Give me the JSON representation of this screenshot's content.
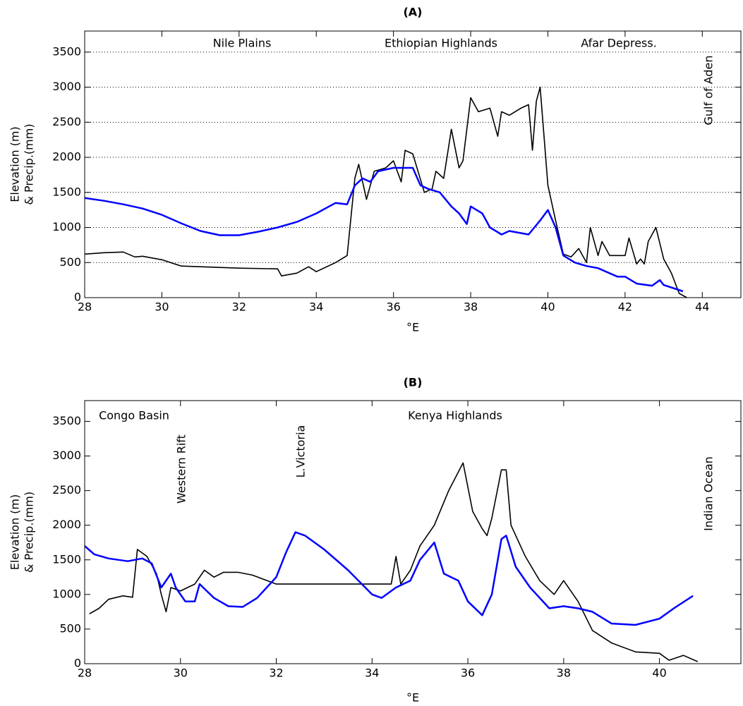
{
  "chart_data": [
    {
      "type": "line",
      "title": "(A)",
      "xlabel": "°E",
      "ylabel": [
        "Elevation (m)",
        "& Precip.(mm)"
      ],
      "annotations": [
        "Nile Plains",
        "Ethiopian Highlands",
        "Afar Depress.",
        "Gulf of Aden"
      ],
      "xlim": [
        28,
        45
      ],
      "ylim": [
        0,
        3800
      ],
      "xticks": [
        28,
        30,
        32,
        34,
        36,
        38,
        40,
        42,
        44
      ],
      "yticks": [
        0,
        500,
        1000,
        1500,
        2000,
        2500,
        3000,
        3500
      ],
      "grid": "y",
      "series": [
        {
          "color": "#000000",
          "x": [
            28,
            28.5,
            29,
            29.3,
            29.5,
            30,
            30.5,
            31,
            32,
            33,
            33.1,
            33.5,
            33.8,
            34,
            34.5,
            34.8,
            35,
            35.1,
            35.3,
            35.5,
            35.8,
            36,
            36.2,
            36.3,
            36.5,
            36.8,
            37,
            37.1,
            37.3,
            37.5,
            37.7,
            37.8,
            38,
            38.2,
            38.5,
            38.7,
            38.8,
            39,
            39.3,
            39.5,
            39.6,
            39.7,
            39.8,
            40,
            40.2,
            40.4,
            40.6,
            40.8,
            41,
            41.1,
            41.3,
            41.4,
            41.6,
            42,
            42.1,
            42.3,
            42.4,
            42.5,
            42.6,
            42.8,
            43,
            43.2,
            43.4,
            43.6
          ],
          "values": [
            620,
            640,
            650,
            580,
            590,
            540,
            450,
            440,
            420,
            410,
            310,
            350,
            440,
            370,
            500,
            600,
            1700,
            1900,
            1400,
            1800,
            1850,
            1950,
            1650,
            2100,
            2050,
            1500,
            1550,
            1800,
            1700,
            2400,
            1850,
            1950,
            2850,
            2650,
            2700,
            2300,
            2650,
            2600,
            2700,
            2750,
            2100,
            2800,
            3000,
            1600,
            1100,
            620,
            580,
            700,
            500,
            1000,
            600,
            800,
            600,
            600,
            850,
            480,
            550,
            480,
            800,
            1000,
            550,
            350,
            60,
            0
          ]
        },
        {
          "color": "#0000ff",
          "x": [
            28,
            28.5,
            29,
            29.5,
            30,
            30.5,
            31,
            31.5,
            32,
            32.5,
            33,
            33.5,
            34,
            34.5,
            34.8,
            35,
            35.2,
            35.4,
            35.6,
            36,
            36.5,
            36.7,
            36.9,
            37.2,
            37.5,
            37.7,
            37.9,
            38,
            38.3,
            38.5,
            38.8,
            39,
            39.5,
            39.8,
            40,
            40.2,
            40.4,
            40.7,
            41,
            41.3,
            41.8,
            42,
            42.3,
            42.7,
            42.9,
            43,
            43.5
          ],
          "values": [
            1420,
            1380,
            1330,
            1270,
            1180,
            1060,
            950,
            890,
            890,
            940,
            1000,
            1080,
            1200,
            1350,
            1330,
            1600,
            1700,
            1650,
            1800,
            1850,
            1850,
            1600,
            1550,
            1500,
            1300,
            1200,
            1050,
            1300,
            1200,
            1000,
            900,
            950,
            900,
            1100,
            1250,
            1000,
            600,
            500,
            450,
            420,
            300,
            300,
            200,
            170,
            250,
            180,
            90
          ]
        }
      ]
    },
    {
      "type": "line",
      "title": "(B)",
      "xlabel": "°E",
      "ylabel": [
        "Elevation (m)",
        "& Precip.(mm)"
      ],
      "annotations": [
        "Congo Basin",
        "Western Rift",
        "L.Victoria",
        "Kenya Highlands",
        "Indian Ocean"
      ],
      "xlim": [
        28,
        41.7
      ],
      "ylim": [
        0,
        3800
      ],
      "xticks": [
        28,
        30,
        32,
        34,
        36,
        38,
        40
      ],
      "yticks": [
        0,
        500,
        1000,
        1500,
        2000,
        2500,
        3000,
        3500
      ],
      "grid": "none",
      "series": [
        {
          "color": "#000000",
          "x": [
            28.1,
            28.3,
            28.5,
            28.8,
            29,
            29.1,
            29.3,
            29.5,
            29.6,
            29.7,
            29.8,
            30,
            30.3,
            30.5,
            30.7,
            30.9,
            31.2,
            31.5,
            32,
            34.4,
            34.5,
            34.6,
            34.8,
            35,
            35.3,
            35.6,
            35.9,
            36.1,
            36.3,
            36.4,
            36.5,
            36.7,
            36.8,
            36.9,
            37.2,
            37.5,
            37.8,
            38,
            38.3,
            38.6,
            39,
            39.5,
            40,
            40.2,
            40.5,
            40.8
          ],
          "values": [
            720,
            800,
            930,
            980,
            960,
            1650,
            1550,
            1300,
            1000,
            750,
            1100,
            1050,
            1150,
            1350,
            1250,
            1320,
            1320,
            1280,
            1150,
            1150,
            1550,
            1150,
            1350,
            1700,
            2000,
            2500,
            2900,
            2200,
            1950,
            1850,
            2100,
            2800,
            2800,
            2000,
            1550,
            1200,
            1000,
            1200,
            900,
            480,
            300,
            170,
            150,
            50,
            120,
            30
          ]
        },
        {
          "color": "#0000ff",
          "x": [
            28,
            28.2,
            28.5,
            28.9,
            29.2,
            29.4,
            29.6,
            29.8,
            29.9,
            30.1,
            30.3,
            30.4,
            30.7,
            31,
            31.3,
            31.6,
            32,
            32.2,
            32.4,
            32.6,
            33,
            33.5,
            34,
            34.2,
            34.5,
            34.8,
            35,
            35.3,
            35.5,
            35.8,
            36,
            36.3,
            36.5,
            36.7,
            36.8,
            37,
            37.3,
            37.7,
            38,
            38.3,
            38.6,
            39,
            39.5,
            40,
            40.3,
            40.7
          ],
          "values": [
            1700,
            1580,
            1520,
            1480,
            1520,
            1450,
            1100,
            1300,
            1100,
            900,
            900,
            1150,
            950,
            830,
            820,
            950,
            1250,
            1600,
            1900,
            1850,
            1650,
            1350,
            1000,
            950,
            1100,
            1200,
            1500,
            1750,
            1300,
            1200,
            900,
            700,
            1000,
            1800,
            1850,
            1400,
            1100,
            800,
            830,
            800,
            750,
            580,
            560,
            650,
            800,
            980
          ]
        }
      ]
    }
  ]
}
